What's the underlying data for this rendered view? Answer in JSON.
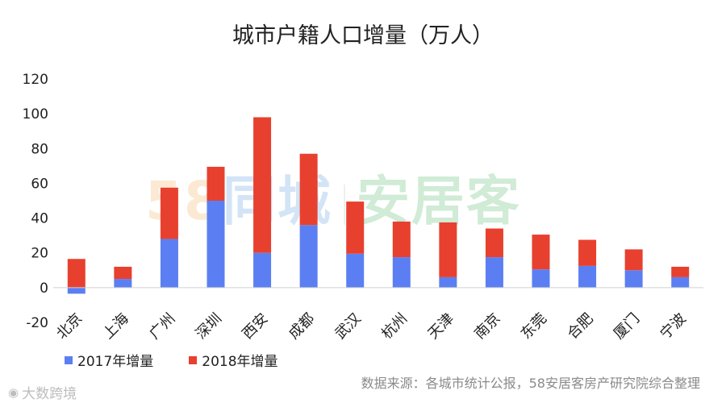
{
  "chart_data": {
    "type": "bar",
    "stacked": true,
    "title": "城市户籍人口增量（万人）",
    "categories": [
      "北京",
      "上海",
      "广州",
      "深圳",
      "西安",
      "成都",
      "武汉",
      "杭州",
      "天津",
      "南京",
      "东莞",
      "合肥",
      "厦门",
      "宁波"
    ],
    "series": [
      {
        "name": "2017年增量",
        "color": "#5b7ff2",
        "values": [
          -3.5,
          5,
          28,
          50,
          20,
          36,
          19.5,
          17.5,
          6,
          17.5,
          10.5,
          12.5,
          10,
          6
        ]
      },
      {
        "name": "2018年增量",
        "color": "#e8402f",
        "values": [
          16.5,
          7,
          29.5,
          19.5,
          78,
          41,
          30,
          20.5,
          31.5,
          16.5,
          20,
          15,
          12,
          6
        ]
      }
    ],
    "ylim": [
      -20,
      120
    ],
    "yticks": [
      -20,
      0,
      20,
      40,
      60,
      80,
      100,
      120
    ],
    "xlabel": "",
    "ylabel": "",
    "grid": false,
    "legend_position": "bottom-left"
  },
  "source_text": "数据来源：各城市统计公报，58安居客房产研究院综合整理",
  "watermark": {
    "part1": "58",
    "part2": "同城",
    "part3": "安居客"
  },
  "corner_logo": {
    "icon": "weibo-icon",
    "text": "大数跨境"
  }
}
